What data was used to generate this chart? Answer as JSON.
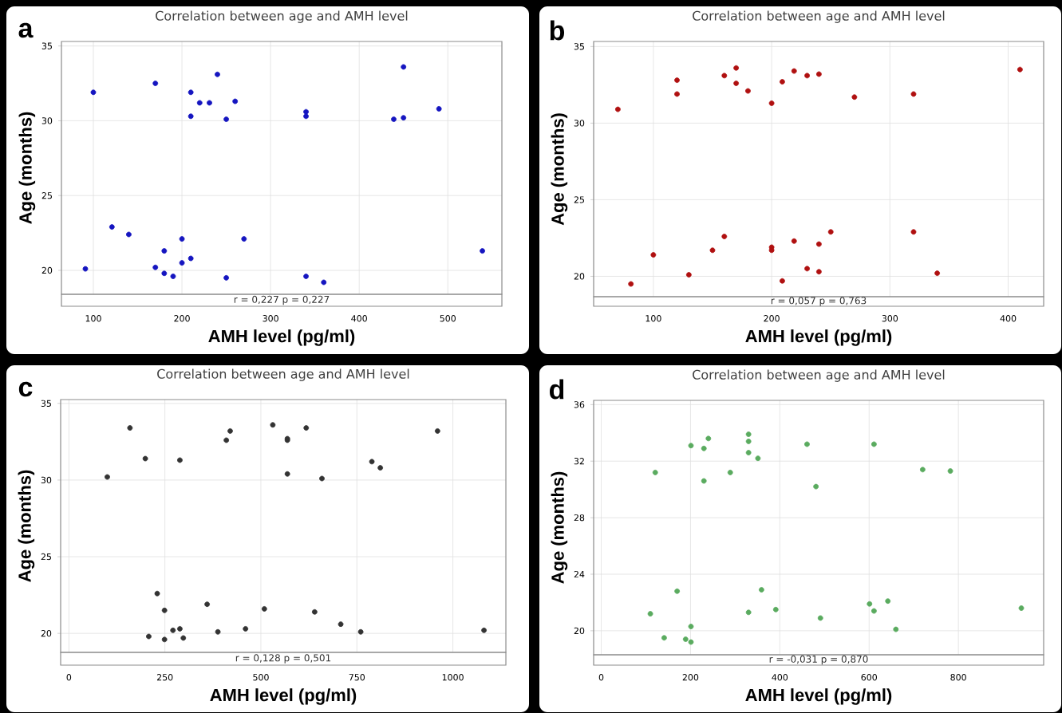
{
  "chart_data": [
    {
      "type": "scatter",
      "title": "Correlation between age and AMH level",
      "xlabel": "AMH level (pg/ml)",
      "ylabel": "Age (months)",
      "color": "#1515c0",
      "marker": "circle",
      "grid": true,
      "x": [
        91,
        100,
        121,
        140,
        170,
        170,
        180,
        180,
        190,
        200,
        200,
        210,
        210,
        210,
        220,
        231,
        240,
        250,
        250,
        260,
        270,
        340,
        340,
        340,
        360,
        439,
        450,
        450,
        490,
        539
      ],
      "values": [
        20.1,
        31.9,
        22.9,
        22.4,
        32.5,
        20.2,
        21.3,
        19.8,
        19.6,
        22.1,
        20.5,
        31.9,
        30.3,
        20.8,
        31.2,
        31.2,
        33.1,
        30.1,
        19.5,
        31.3,
        22.1,
        30.6,
        30.3,
        19.6,
        19.2,
        30.1,
        33.6,
        30.2,
        30.8,
        21.3
      ],
      "xlim": [
        64,
        561
      ],
      "ylim": [
        18.4,
        35.3
      ],
      "xticks": [
        100,
        200,
        300,
        400,
        500
      ],
      "yticks": [
        20,
        25,
        30,
        35
      ],
      "annotations": [
        "a",
        "r = 0,227  p = 0,227"
      ]
    },
    {
      "type": "scatter",
      "title": "Correlation between age and AMH level",
      "xlabel": "AMH level (pg/ml)",
      "ylabel": "Age (months)",
      "color": "#b01010",
      "marker": "circle",
      "grid": true,
      "x": [
        70,
        81,
        100,
        120,
        120,
        130,
        150,
        160,
        160,
        170,
        170,
        180,
        200,
        200,
        200,
        209,
        209,
        219,
        219,
        230,
        230,
        240,
        240,
        240,
        250,
        270,
        320,
        320,
        340,
        410
      ],
      "values": [
        30.9,
        19.5,
        21.4,
        32.8,
        31.9,
        20.1,
        21.7,
        33.1,
        22.6,
        33.6,
        32.6,
        32.1,
        31.3,
        21.9,
        21.7,
        32.7,
        19.7,
        33.4,
        22.3,
        33.1,
        20.5,
        33.2,
        22.1,
        20.3,
        22.9,
        31.7,
        31.9,
        22.9,
        20.2,
        33.5
      ],
      "xlim": [
        49.5,
        430
      ],
      "ylim": [
        18.67,
        35.33
      ],
      "xticks": [
        100,
        200,
        300,
        400
      ],
      "yticks": [
        20,
        25,
        30,
        35
      ],
      "annotations": [
        "b",
        "r = 0,057  p = 0,763"
      ]
    },
    {
      "type": "scatter",
      "title": "Correlation between age and AMH level",
      "xlabel": "AMH level (pg/ml)",
      "ylabel": "Age (months)",
      "color": "#333333",
      "marker": "circle",
      "grid": true,
      "x": [
        100,
        159,
        199,
        208,
        230,
        249,
        249,
        271,
        289,
        289,
        298,
        360,
        388,
        410,
        420,
        460,
        509,
        531,
        569,
        569,
        569,
        618,
        640,
        659,
        708,
        760,
        789,
        811,
        960,
        1081
      ],
      "values": [
        30.2,
        33.4,
        31.4,
        19.8,
        22.6,
        21.5,
        19.6,
        20.2,
        31.3,
        20.3,
        19.7,
        21.9,
        20.1,
        32.6,
        33.2,
        20.3,
        21.6,
        33.6,
        32.7,
        32.6,
        30.4,
        33.4,
        21.4,
        30.1,
        20.6,
        20.1,
        31.2,
        30.8,
        33.2,
        20.2
      ],
      "xlim": [
        -21.5,
        1138
      ],
      "ylim": [
        18.76,
        35.25
      ],
      "xticks": [
        0,
        250,
        500,
        750,
        1000
      ],
      "yticks": [
        20,
        25,
        30,
        35
      ],
      "annotations": [
        "c",
        "r = 0,128  p = 0,501"
      ]
    },
    {
      "type": "scatter",
      "title": "Correlation between age and AMH level",
      "xlabel": "AMH level (pg/ml)",
      "ylabel": "Age (months)",
      "color": "#5aab5f",
      "marker": "circle",
      "grid": true,
      "x": [
        110,
        121,
        141,
        170,
        189,
        201,
        201,
        201,
        230,
        230,
        240,
        289,
        330,
        330,
        330,
        330,
        351,
        359,
        391,
        461,
        481,
        491,
        601,
        611,
        611,
        642,
        660,
        720,
        782,
        941
      ],
      "values": [
        21.2,
        31.2,
        19.5,
        22.8,
        19.4,
        33.1,
        20.3,
        19.2,
        32.9,
        30.6,
        33.6,
        31.2,
        33.9,
        33.4,
        32.6,
        21.3,
        32.2,
        22.9,
        21.5,
        33.2,
        30.2,
        20.9,
        21.9,
        33.2,
        21.4,
        22.1,
        20.1,
        31.4,
        31.3,
        21.6
      ],
      "xlim": [
        -17,
        991
      ],
      "ylim": [
        18.3,
        36.3
      ],
      "xticks": [
        0,
        200,
        400,
        600,
        800
      ],
      "yticks": [
        20,
        24,
        28,
        32,
        36
      ],
      "annotations": [
        "d",
        "r = -0,031  p = 0,870"
      ]
    }
  ]
}
